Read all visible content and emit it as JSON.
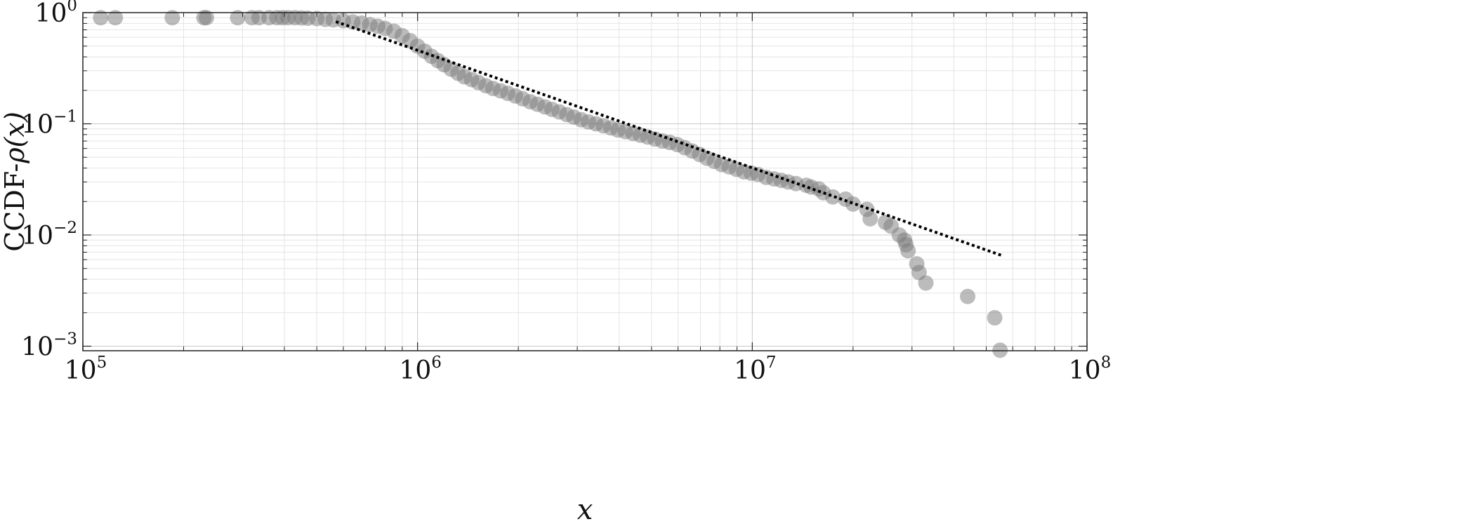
{
  "chart_data": {
    "type": "scatter",
    "title": "",
    "xlabel": "x",
    "ylabel_prefix": "CCDF-",
    "ylabel_rho": "ρ",
    "ylabel_arg": "(x)",
    "xscale": "log",
    "yscale": "log",
    "xlim": [
      100000,
      100000000
    ],
    "ylim": [
      0.00091,
      1.0
    ],
    "grid": true,
    "x_ticks": [
      {
        "base": "10",
        "exp": "5"
      },
      {
        "base": "10",
        "exp": "6"
      },
      {
        "base": "10",
        "exp": "7"
      },
      {
        "base": "10",
        "exp": "8"
      }
    ],
    "y_ticks": [
      {
        "base": "10",
        "exp": "0"
      },
      {
        "base": "10",
        "exp": "−1"
      },
      {
        "base": "10",
        "exp": "−2"
      },
      {
        "base": "10",
        "exp": "−3"
      }
    ],
    "x_tick_values": [
      100000,
      1000000,
      10000000,
      100000000
    ],
    "y_tick_values": [
      1,
      0.1,
      0.01,
      0.001
    ],
    "marker_color": "#7a7a7a",
    "fit_color": "#000000",
    "series": [
      {
        "kind": "scatter",
        "x": [
          113000,
          125000,
          185000,
          230000,
          234000,
          290000,
          320000,
          336000,
          360000,
          380000,
          395000,
          410000,
          430000,
          450000,
          470000,
          500000,
          530000,
          560000,
          600000,
          640000,
          680000,
          720000,
          760000,
          800000,
          850000,
          900000,
          950000,
          1000000,
          1050000,
          1100000,
          1150000,
          1200000,
          1260000,
          1320000,
          1380000,
          1450000,
          1520000,
          1600000,
          1680000,
          1770000,
          1860000,
          1960000,
          2060000,
          2170000,
          2280000,
          2400000,
          2520000,
          2650000,
          2790000,
          2930000,
          3080000,
          3240000,
          3410000,
          3590000,
          3780000,
          3970000,
          4180000,
          4400000,
          4630000,
          4870000,
          5120000,
          5390000,
          5670000,
          5970000,
          6280000,
          6610000,
          6960000,
          7320000,
          7700000,
          8100000,
          8530000,
          8970000,
          9440000,
          9930000,
          10400000,
          11000000,
          11600000,
          12200000,
          12800000,
          13500000,
          14500000,
          15000000,
          15800000,
          16300000,
          17400000,
          19000000,
          20000000,
          22000000,
          22500000,
          25000000,
          26000000,
          27500000,
          28500000,
          28800000,
          29200000,
          31000000,
          31500000,
          33000000,
          44000000,
          53000000,
          55000000
        ],
        "y": [
          0.9,
          0.9,
          0.9,
          0.9,
          0.9,
          0.9,
          0.9,
          0.9,
          0.9,
          0.9,
          0.9,
          0.9,
          0.9,
          0.895,
          0.89,
          0.885,
          0.87,
          0.86,
          0.845,
          0.825,
          0.805,
          0.78,
          0.755,
          0.72,
          0.68,
          0.62,
          0.56,
          0.5,
          0.45,
          0.405,
          0.37,
          0.34,
          0.31,
          0.285,
          0.265,
          0.25,
          0.235,
          0.22,
          0.208,
          0.198,
          0.188,
          0.178,
          0.168,
          0.158,
          0.15,
          0.142,
          0.135,
          0.128,
          0.121,
          0.115,
          0.109,
          0.104,
          0.1,
          0.096,
          0.092,
          0.088,
          0.085,
          0.082,
          0.079,
          0.076,
          0.073,
          0.07,
          0.068,
          0.065,
          0.061,
          0.057,
          0.053,
          0.049,
          0.046,
          0.043,
          0.041,
          0.039,
          0.037,
          0.036,
          0.035,
          0.033,
          0.032,
          0.031,
          0.03,
          0.029,
          0.028,
          0.027,
          0.026,
          0.024,
          0.022,
          0.021,
          0.019,
          0.017,
          0.014,
          0.013,
          0.012,
          0.01,
          0.009,
          0.0082,
          0.0072,
          0.0055,
          0.0046,
          0.0037,
          0.0028,
          0.0018,
          0.00092
        ]
      },
      {
        "kind": "fit",
        "x": [
          570000,
          56000000
        ],
        "y": [
          0.83,
          0.0065
        ]
      }
    ]
  }
}
